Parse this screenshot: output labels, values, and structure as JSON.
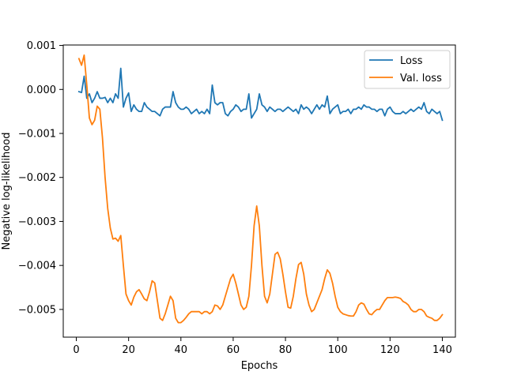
{
  "chart_data": {
    "type": "line",
    "title": "",
    "xlabel": "Epochs",
    "ylabel": "Negative log-likelihood",
    "xlim": [
      -5,
      145
    ],
    "ylim": [
      -0.00563,
      0.00101
    ],
    "xticks": [
      0,
      20,
      40,
      60,
      80,
      100,
      120,
      140
    ],
    "yticks": [
      -0.005,
      -0.004,
      -0.003,
      -0.002,
      -0.001,
      0.0,
      0.001
    ],
    "ytick_labels": [
      "−0.005",
      "−0.004",
      "−0.003",
      "−0.002",
      "−0.001",
      "0.000",
      "0.001"
    ],
    "grid": false,
    "legend_position": "top-right",
    "series": [
      {
        "name": "Loss",
        "color": "#1f77b4",
        "x": [
          1,
          2,
          3,
          4,
          5,
          6,
          7,
          8,
          9,
          10,
          11,
          12,
          13,
          14,
          15,
          16,
          17,
          18,
          19,
          20,
          21,
          22,
          23,
          24,
          25,
          26,
          27,
          28,
          29,
          30,
          31,
          32,
          33,
          34,
          35,
          36,
          37,
          38,
          39,
          40,
          41,
          42,
          43,
          44,
          45,
          46,
          47,
          48,
          49,
          50,
          51,
          52,
          53,
          54,
          55,
          56,
          57,
          58,
          59,
          60,
          61,
          62,
          63,
          64,
          65,
          66,
          67,
          68,
          69,
          70,
          71,
          72,
          73,
          74,
          75,
          76,
          77,
          78,
          79,
          80,
          81,
          82,
          83,
          84,
          85,
          86,
          87,
          88,
          89,
          90,
          91,
          92,
          93,
          94,
          95,
          96,
          97,
          98,
          99,
          100,
          101,
          102,
          103,
          104,
          105,
          106,
          107,
          108,
          109,
          110,
          111,
          112,
          113,
          114,
          115,
          116,
          117,
          118,
          119,
          120,
          121,
          122,
          123,
          124,
          125,
          126,
          127,
          128,
          129,
          130,
          131,
          132,
          133,
          134,
          135,
          136,
          137,
          138,
          139,
          140
        ],
        "y": [
          -5e-05,
          -7e-05,
          0.0003,
          -0.0002,
          -0.0001,
          -0.0003,
          -0.0002,
          -5e-05,
          -0.0002,
          -0.0002,
          -0.00018,
          -0.0003,
          -0.0002,
          -0.0003,
          -0.0001,
          -0.0002,
          0.00048,
          -0.0004,
          -0.0002,
          -8e-05,
          -0.0005,
          -0.00035,
          -0.00045,
          -0.0005,
          -0.0005,
          -0.0003,
          -0.0004,
          -0.00045,
          -0.0005,
          -0.0005,
          -0.00055,
          -0.0006,
          -0.00045,
          -0.0004,
          -0.0004,
          -0.0004,
          -5e-05,
          -0.0003,
          -0.0004,
          -0.00045,
          -0.00045,
          -0.0004,
          -0.00045,
          -0.00055,
          -0.0005,
          -0.00045,
          -0.00055,
          -0.0005,
          -0.00055,
          -0.00045,
          -0.00055,
          0.0001,
          -0.0003,
          -0.00035,
          -0.0003,
          -0.0003,
          -0.00055,
          -0.0006,
          -0.0005,
          -0.00045,
          -0.00035,
          -0.0004,
          -0.0005,
          -0.00045,
          -0.00045,
          -0.0001,
          -0.00065,
          -0.00055,
          -0.00045,
          -0.0001,
          -0.00035,
          -0.0004,
          -0.0005,
          -0.0004,
          -0.00045,
          -0.0005,
          -0.00045,
          -0.00045,
          -0.0005,
          -0.00045,
          -0.0004,
          -0.00045,
          -0.0005,
          -0.00045,
          -0.00055,
          -0.00035,
          -0.00045,
          -0.0004,
          -0.00045,
          -0.00055,
          -0.00045,
          -0.00035,
          -0.00045,
          -0.00035,
          -0.0004,
          -0.00015,
          -0.00055,
          -0.00045,
          -0.0004,
          -0.00035,
          -0.00055,
          -0.0005,
          -0.0005,
          -0.00045,
          -0.00055,
          -0.00045,
          -0.00045,
          -0.0004,
          -0.00045,
          -0.00035,
          -0.0004,
          -0.0004,
          -0.00045,
          -0.00045,
          -0.0005,
          -0.00045,
          -0.00045,
          -0.0006,
          -0.00045,
          -0.0004,
          -0.0005,
          -0.00055,
          -0.00055,
          -0.00055,
          -0.0005,
          -0.00055,
          -0.0005,
          -0.00045,
          -0.0005,
          -0.00045,
          -0.0004,
          -0.00045,
          -0.0003,
          -0.0005,
          -0.00055,
          -0.00045,
          -0.0005,
          -0.00055,
          -0.0005,
          -0.0007
        ]
      },
      {
        "name": "Val. loss",
        "color": "#ff7f0e",
        "x": [
          1,
          2,
          3,
          4,
          5,
          6,
          7,
          8,
          9,
          10,
          11,
          12,
          13,
          14,
          15,
          16,
          17,
          18,
          19,
          20,
          21,
          22,
          23,
          24,
          25,
          26,
          27,
          28,
          29,
          30,
          31,
          32,
          33,
          34,
          35,
          36,
          37,
          38,
          39,
          40,
          41,
          42,
          43,
          44,
          45,
          46,
          47,
          48,
          49,
          50,
          51,
          52,
          53,
          54,
          55,
          56,
          57,
          58,
          59,
          60,
          61,
          62,
          63,
          64,
          65,
          66,
          67,
          68,
          69,
          70,
          71,
          72,
          73,
          74,
          75,
          76,
          77,
          78,
          79,
          80,
          81,
          82,
          83,
          84,
          85,
          86,
          87,
          88,
          89,
          90,
          91,
          92,
          93,
          94,
          95,
          96,
          97,
          98,
          99,
          100,
          101,
          102,
          103,
          104,
          105,
          106,
          107,
          108,
          109,
          110,
          111,
          112,
          113,
          114,
          115,
          116,
          117,
          118,
          119,
          120,
          121,
          122,
          123,
          124,
          125,
          126,
          127,
          128,
          129,
          130,
          131,
          132,
          133,
          134,
          135,
          136,
          137,
          138,
          139,
          140
        ],
        "y": [
          0.0007,
          0.00055,
          0.00078,
          0.0001,
          -0.00065,
          -0.0008,
          -0.0007,
          -0.00038,
          -0.00045,
          -0.0011,
          -0.002,
          -0.0027,
          -0.00315,
          -0.0034,
          -0.00338,
          -0.00345,
          -0.00332,
          -0.004,
          -0.00465,
          -0.0048,
          -0.0049,
          -0.00472,
          -0.0046,
          -0.00455,
          -0.00465,
          -0.00476,
          -0.0048,
          -0.0046,
          -0.00435,
          -0.0044,
          -0.0048,
          -0.0052,
          -0.00525,
          -0.0051,
          -0.0049,
          -0.0047,
          -0.0048,
          -0.0052,
          -0.0053,
          -0.0053,
          -0.00525,
          -0.00518,
          -0.0051,
          -0.00505,
          -0.00505,
          -0.00505,
          -0.00505,
          -0.0051,
          -0.00505,
          -0.00505,
          -0.0051,
          -0.00505,
          -0.0049,
          -0.00492,
          -0.005,
          -0.0049,
          -0.0047,
          -0.0045,
          -0.0043,
          -0.0042,
          -0.0044,
          -0.00465,
          -0.0049,
          -0.005,
          -0.00495,
          -0.0047,
          -0.004,
          -0.0031,
          -0.00265,
          -0.0031,
          -0.004,
          -0.0047,
          -0.00485,
          -0.00465,
          -0.0042,
          -0.00375,
          -0.0037,
          -0.00385,
          -0.0042,
          -0.0046,
          -0.00495,
          -0.00497,
          -0.0047,
          -0.0043,
          -0.00398,
          -0.00393,
          -0.0042,
          -0.00465,
          -0.0049,
          -0.00505,
          -0.005,
          -0.00485,
          -0.0047,
          -0.00455,
          -0.0043,
          -0.0041,
          -0.00418,
          -0.0044,
          -0.0047,
          -0.00495,
          -0.00505,
          -0.0051,
          -0.00512,
          -0.00514,
          -0.00515,
          -0.00515,
          -0.00505,
          -0.0049,
          -0.00485,
          -0.00488,
          -0.005,
          -0.0051,
          -0.00512,
          -0.00505,
          -0.005,
          -0.005,
          -0.0049,
          -0.0048,
          -0.00473,
          -0.00473,
          -0.00473,
          -0.00472,
          -0.00473,
          -0.00475,
          -0.00482,
          -0.00485,
          -0.0049,
          -0.005,
          -0.00505,
          -0.00505,
          -0.005,
          -0.005,
          -0.00505,
          -0.00515,
          -0.00518,
          -0.0052,
          -0.00525,
          -0.00525,
          -0.0052,
          -0.00512
        ]
      }
    ]
  }
}
